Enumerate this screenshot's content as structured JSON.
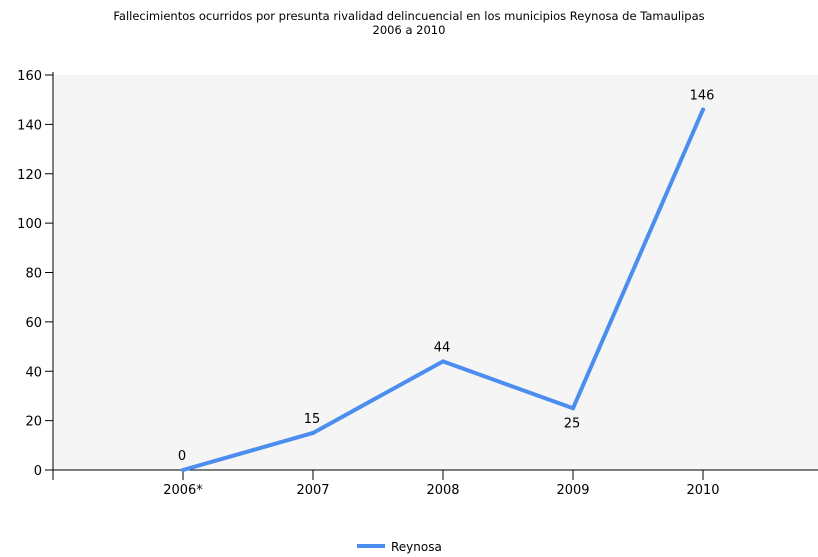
{
  "chart_data": {
    "type": "line",
    "title": "Fallecimientos ocurridos por presunta rivalidad delincuencial en los municipios Reynosa de Tamaulipas",
    "subtitle": "2006 a 2010",
    "xlabel": "",
    "ylabel": "",
    "categories": [
      "2006*",
      "2007",
      "2008",
      "2009",
      "2010"
    ],
    "series": [
      {
        "name": "Reynosa",
        "values": [
          0,
          15,
          44,
          25,
          146
        ],
        "color": "#4c8eef"
      }
    ],
    "data_labels": [
      "0",
      "15",
      "44",
      "25",
      "146"
    ],
    "ylim": [
      0,
      160
    ],
    "yticks": [
      0,
      20,
      40,
      60,
      80,
      100,
      120,
      140,
      160
    ],
    "grid": false,
    "plot_background": "#f5f5f5",
    "legend_position": "bottom-center"
  }
}
